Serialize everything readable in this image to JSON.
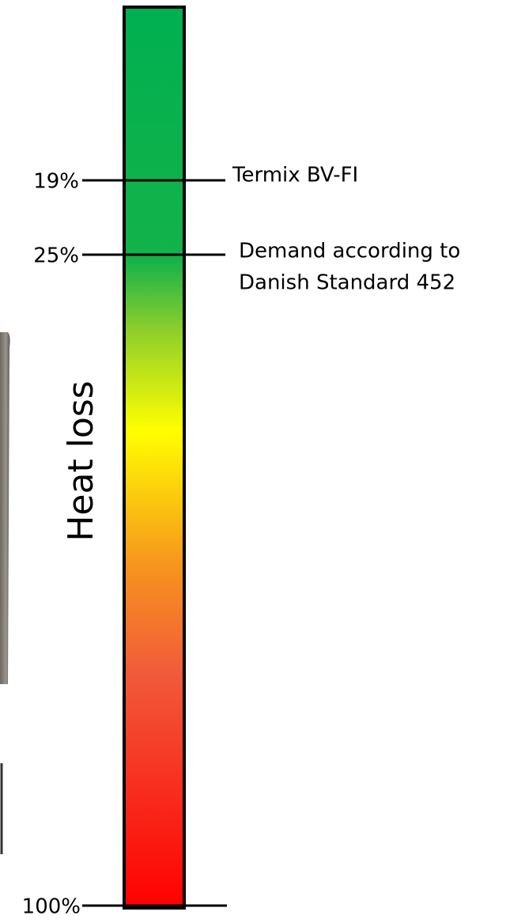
{
  "axis_label": "Heat loss",
  "markers": [
    {
      "label": "19%",
      "note": [
        "Termix BV-FI"
      ]
    },
    {
      "label": "25%",
      "note": [
        "Demand according to",
        "Danish Standard 452"
      ]
    },
    {
      "label": "100%"
    }
  ]
}
